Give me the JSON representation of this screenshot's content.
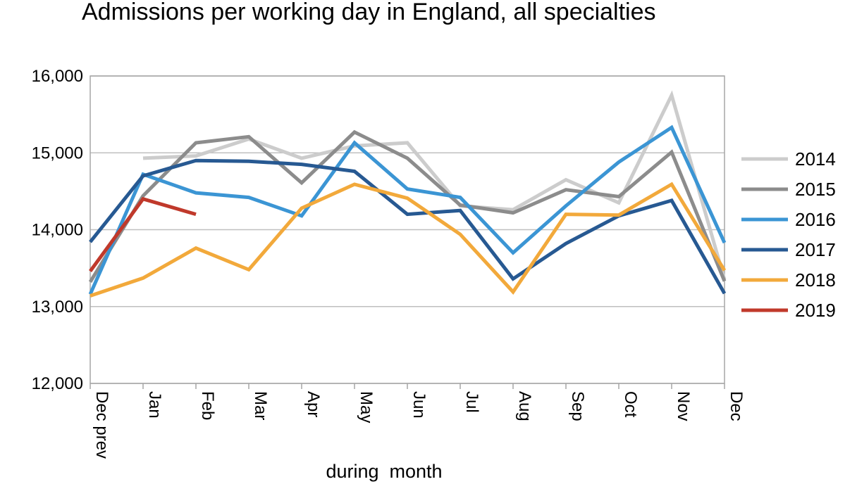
{
  "chart_data": {
    "type": "line",
    "title": "Admissions per working day in England, all specialties",
    "xlabel": "during  month",
    "ylabel": "",
    "categories": [
      "Dec prev",
      "Jan",
      "Feb",
      "Mar",
      "Apr",
      "May",
      "Jun",
      "Jul",
      "Aug",
      "Sep",
      "Oct",
      "Nov",
      "Dec"
    ],
    "ylim": [
      12000,
      16000
    ],
    "yticks": [
      12000,
      13000,
      14000,
      15000,
      16000
    ],
    "ytick_labels": [
      "12,000",
      "13,000",
      "14,000",
      "15,000",
      "16,000"
    ],
    "grid": true,
    "legend_position": "right",
    "series": [
      {
        "name": "2014",
        "color": "#cccccc",
        "values": [
          null,
          14930,
          14960,
          15180,
          14930,
          15090,
          15130,
          14310,
          14260,
          14650,
          14350,
          15750,
          13350
        ]
      },
      {
        "name": "2015",
        "color": "#8c8c8c",
        "values": [
          13320,
          14440,
          15130,
          15210,
          14610,
          15270,
          14930,
          14320,
          14220,
          14520,
          14430,
          15010,
          13330
        ]
      },
      {
        "name": "2016",
        "color": "#3b95d4",
        "values": [
          13160,
          14720,
          14480,
          14420,
          14180,
          15130,
          14530,
          14420,
          13700,
          14310,
          14880,
          15330,
          13830
        ]
      },
      {
        "name": "2017",
        "color": "#275992",
        "values": [
          13840,
          14700,
          14900,
          14890,
          14850,
          14760,
          14200,
          14250,
          13360,
          13820,
          14180,
          14380,
          13170
        ]
      },
      {
        "name": "2018",
        "color": "#f2a93b",
        "values": [
          13140,
          13370,
          13760,
          13480,
          14280,
          14590,
          14410,
          13940,
          13190,
          14200,
          14190,
          14590,
          13470
        ]
      },
      {
        "name": "2019",
        "color": "#c0392b",
        "values": [
          13460,
          14400,
          14200,
          null,
          null,
          null,
          null,
          null,
          null,
          null,
          null,
          null,
          null
        ]
      }
    ]
  }
}
